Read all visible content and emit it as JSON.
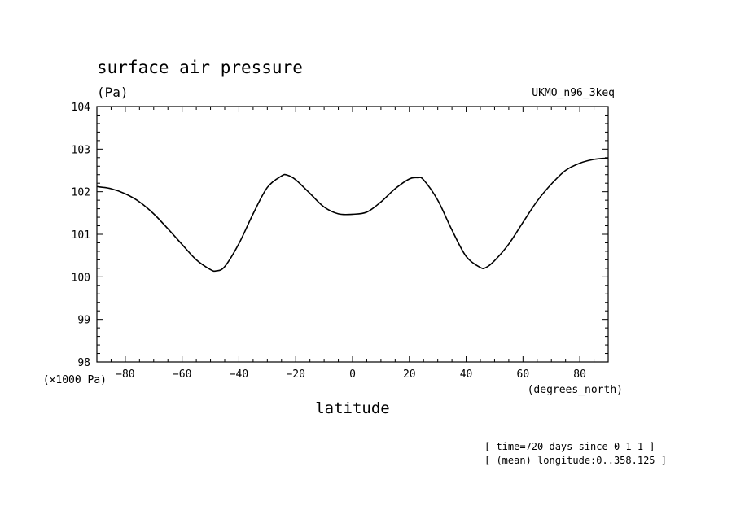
{
  "chart_data": {
    "type": "line",
    "title": "surface air pressure",
    "units": "(Pa)",
    "model": "UKMO_n96_3keq",
    "xlabel": "latitude",
    "x_units": "(degrees_north)",
    "y_scale_label": "(×1000 Pa)",
    "xlim": [
      -90,
      90
    ],
    "ylim": [
      98,
      104
    ],
    "xticks": [
      -80,
      -60,
      -40,
      -20,
      0,
      20,
      40,
      60,
      80
    ],
    "xtick_labels": [
      "−80",
      "−60",
      "−40",
      "−20",
      "0",
      "20",
      "40",
      "60",
      "80"
    ],
    "yticks": [
      98,
      99,
      100,
      101,
      102,
      103,
      104
    ],
    "ytick_labels": [
      "98",
      "99",
      "100",
      "101",
      "102",
      "103",
      "104"
    ],
    "series": [
      {
        "name": "surface air pressure",
        "x": [
          -90,
          -85,
          -80,
          -75,
          -70,
          -65,
          -60,
          -55,
          -50,
          -48,
          -45,
          -40,
          -35,
          -30,
          -25,
          -23,
          -20,
          -15,
          -10,
          -5,
          0,
          5,
          10,
          15,
          20,
          23,
          25,
          30,
          35,
          40,
          45,
          47,
          50,
          55,
          60,
          65,
          70,
          75,
          80,
          85,
          90
        ],
        "y": [
          102.12,
          102.07,
          101.95,
          101.76,
          101.48,
          101.13,
          100.76,
          100.4,
          100.17,
          100.14,
          100.24,
          100.78,
          101.48,
          102.1,
          102.37,
          102.39,
          102.28,
          101.96,
          101.64,
          101.48,
          101.47,
          101.52,
          101.76,
          102.07,
          102.3,
          102.33,
          102.28,
          101.8,
          101.1,
          100.48,
          100.22,
          100.22,
          100.38,
          100.77,
          101.28,
          101.78,
          102.18,
          102.5,
          102.67,
          102.76,
          102.79
        ]
      }
    ],
    "annotations": [
      "[ time=720 days since 0-1-1 ]",
      "[ (mean) longitude:0..358.125 ]"
    ]
  }
}
